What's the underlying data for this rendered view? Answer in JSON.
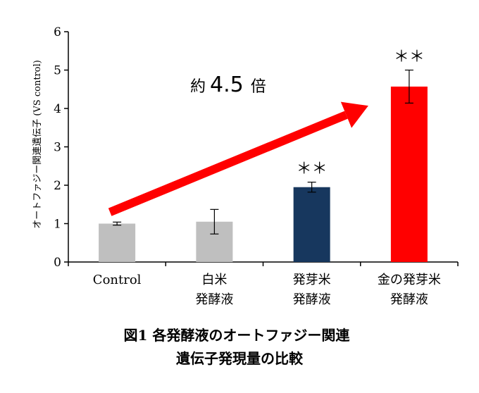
{
  "chart_data": {
    "type": "bar",
    "categories": [
      {
        "lines": [
          "Control"
        ]
      },
      {
        "lines": [
          "白米",
          "発酵液"
        ]
      },
      {
        "lines": [
          "発芽米",
          "発酵液"
        ]
      },
      {
        "lines": [
          "金の発芽米",
          "発酵液"
        ]
      }
    ],
    "values": [
      1.0,
      1.05,
      1.95,
      4.57
    ],
    "errors": [
      0.04,
      0.32,
      0.13,
      0.43
    ],
    "significance": [
      "",
      "",
      "＊＊",
      "＊＊"
    ],
    "colors": [
      "#bfbfbf",
      "#bfbfbf",
      "#17375e",
      "#ff0000"
    ],
    "ylabel": "オートファジー関連遺伝子 (VS control)",
    "ylim": [
      0,
      6
    ],
    "yticks": [
      "0",
      "1",
      "2",
      "3",
      "4",
      "5",
      "6"
    ],
    "annotation": {
      "prefix": "約",
      "value": "4.5",
      "suffix": "倍"
    },
    "arrow_color": "#ff0000",
    "arrow_from_category": 0,
    "arrow_to_category": 3,
    "caption": [
      "図1 各発酵液のオートファジー関連",
      "遺伝子発現量の比較"
    ]
  }
}
